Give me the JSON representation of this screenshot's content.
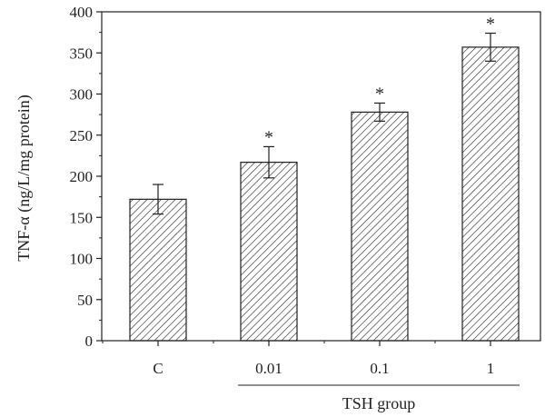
{
  "chart_data": {
    "type": "bar",
    "title": "",
    "xlabel": "",
    "ylabel": "TNF-α (ng/L/mg protein)",
    "ylim": [
      0,
      400
    ],
    "yticks": [
      0,
      50,
      100,
      150,
      200,
      250,
      300,
      350,
      400
    ],
    "categories": [
      "C",
      "0.01",
      "0.1",
      "1"
    ],
    "values": [
      172,
      217,
      278,
      357
    ],
    "errors": [
      18,
      19,
      11,
      17
    ],
    "significance": [
      "",
      "*",
      "*",
      "*"
    ],
    "group_label": "TSH group",
    "group_categories": [
      "0.01",
      "0.1",
      "1"
    ],
    "bar_fill": "hatched",
    "colors": {
      "ink": "#231f20",
      "background": "#ffffff"
    },
    "grid": false,
    "legend": "none"
  }
}
